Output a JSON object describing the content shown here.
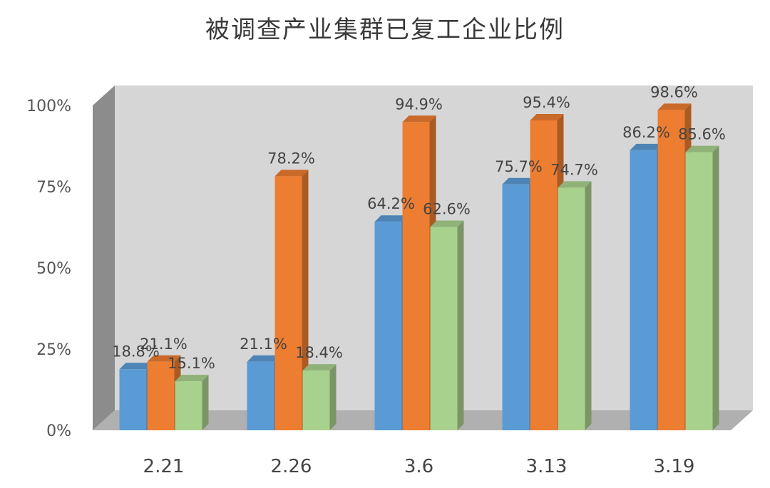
{
  "chart_data": {
    "type": "bar",
    "title": "被调查产业集群已复工企业比例",
    "categories": [
      "2.21",
      "2.26",
      "3.6",
      "3.13",
      "3.19"
    ],
    "series": [
      {
        "values": [
          18.8,
          21.1,
          64.2,
          75.7,
          86.2
        ],
        "labels": [
          "18.8%",
          "21.1%",
          "64.2%",
          "75.7%",
          "86.2%"
        ],
        "color": "#5b9bd5"
      },
      {
        "values": [
          21.1,
          78.2,
          94.9,
          95.4,
          98.6
        ],
        "labels": [
          "21.1%",
          "78.2%",
          "94.9%",
          "95.4%",
          "98.6%"
        ],
        "color": "#ed7d31"
      },
      {
        "values": [
          15.1,
          18.4,
          62.6,
          74.7,
          85.6
        ],
        "labels": [
          "15.1%",
          "18.4%",
          "62.6%",
          "74.7%",
          "85.6%"
        ],
        "color": "#a9d18e"
      }
    ],
    "y_ticks": [
      "0%",
      "25%",
      "50%",
      "75%",
      "100%"
    ],
    "ylim": [
      0,
      100
    ],
    "grid": false,
    "legend": "none",
    "style": "3d-clustered-column",
    "wall_color": "#d6d6d6",
    "side_wall_color": "#8c8c8c",
    "floor_color": "#b0b0b0"
  }
}
